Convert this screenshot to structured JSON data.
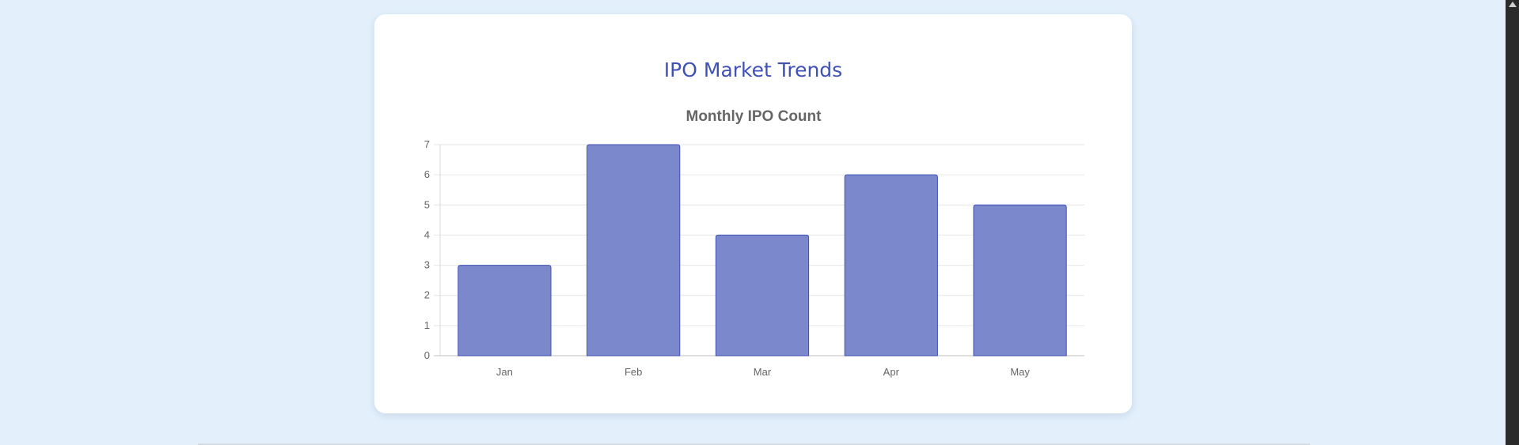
{
  "page": {
    "title": "IPO Market Trends"
  },
  "chart_data": {
    "type": "bar",
    "title": "Monthly IPO Count",
    "categories": [
      "Jan",
      "Feb",
      "Mar",
      "Apr",
      "May"
    ],
    "values": [
      3,
      7,
      4,
      6,
      5
    ],
    "yticks": [
      "0",
      "1",
      "2",
      "3",
      "4",
      "5",
      "6",
      "7"
    ],
    "ylim": [
      0,
      7
    ],
    "xlabel": "",
    "ylabel": "",
    "grid": true,
    "legend": "none",
    "bar_color": "#7986cb",
    "bar_border_color": "#3f51b5"
  }
}
